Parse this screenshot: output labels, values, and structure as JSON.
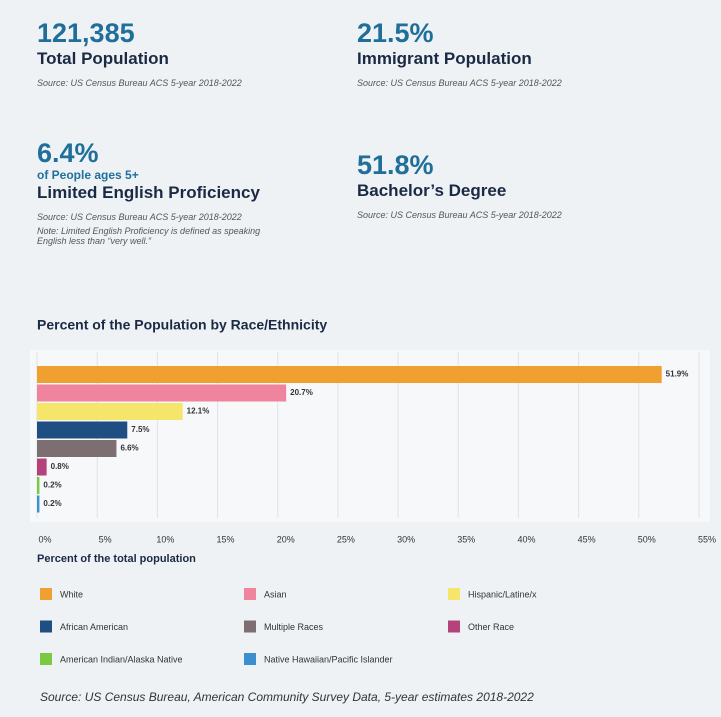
{
  "stats": [
    {
      "value": "121,385",
      "label": "Total Population",
      "source": "Source: US Census Bureau ACS 5-year 2018-2022"
    },
    {
      "value": "21.5%",
      "label": "Immigrant Population",
      "source": "Source: US Census Bureau ACS 5-year 2018-2022"
    },
    {
      "value": "6.4%",
      "sublabel": "of People ages 5+",
      "label": "Limited English Proficiency",
      "source": "Source: US Census Bureau ACS 5-year 2018-2022",
      "note": "Note: Limited English Proficiency is defined as speaking English less than “very well.”"
    },
    {
      "value": "51.8%",
      "label": "Bachelor’s Degree",
      "source": "Source: US Census Bureau ACS 5-year 2018-2022"
    }
  ],
  "chart_data": {
    "type": "bar",
    "orientation": "horizontal",
    "title": "Percent of the Population by Race/Ethnicity",
    "x_label": "Percent of the total population",
    "categories": [
      "White",
      "Asian",
      "Hispanic/Latine/x",
      "African American",
      "Multiple Races",
      "Other Race",
      "American Indian/Alaska Native",
      "Native Hawaiian/Pacific Islander"
    ],
    "values": [
      51.9,
      20.7,
      12.1,
      7.5,
      6.6,
      0.8,
      0.2,
      0.2
    ],
    "value_labels": [
      "51.9%",
      "20.7%",
      "12.1%",
      "7.5%",
      "6.6%",
      "0.8%",
      "0.2%",
      "0.2%"
    ],
    "colors": [
      "#f0a030",
      "#f0839e",
      "#f5e56b",
      "#1f4e82",
      "#7d6e72",
      "#b5427a",
      "#7ac943",
      "#3b8fcf"
    ],
    "xlim": [
      0,
      55
    ],
    "xticks": [
      {
        "value": 0,
        "label": "0%"
      },
      {
        "value": 5,
        "label": "5%"
      },
      {
        "value": 10,
        "label": "10%"
      },
      {
        "value": 15,
        "label": "15%"
      },
      {
        "value": 20,
        "label": "20%"
      },
      {
        "value": 25,
        "label": "25%"
      },
      {
        "value": 30,
        "label": "30%"
      },
      {
        "value": 35,
        "label": "35%"
      },
      {
        "value": 40,
        "label": "40%"
      },
      {
        "value": 45,
        "label": "45%"
      },
      {
        "value": 50,
        "label": "50%"
      },
      {
        "value": 55,
        "label": "55%"
      }
    ],
    "grid": true,
    "source": "Source: US Census Bureau, American Community Survey Data, 5-year estimates 2018-2022"
  }
}
